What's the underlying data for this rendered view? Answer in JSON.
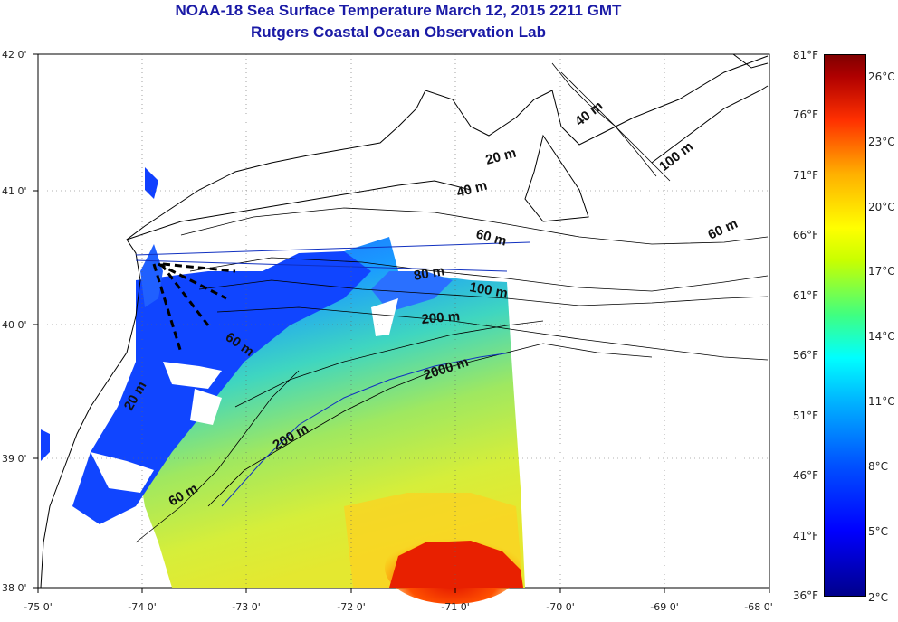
{
  "title": {
    "line1": "NOAA-18 Sea Surface Temperature March 12, 2015 2211 GMT",
    "line2": "Rutgers Coastal Ocean Observation Lab"
  },
  "axes": {
    "lon_labels": [
      "-75 0'",
      "-74 0'",
      "-73 0'",
      "-72 0'",
      "-71 0'",
      "-70 0'",
      "-69 0'",
      "-68 0'"
    ],
    "lat_labels": [
      "42 0'",
      "41 0'",
      "40 0'",
      "39 0'",
      "38 0'"
    ]
  },
  "contours": {
    "labels": [
      "40 m",
      "20 m",
      "40 m",
      "100 m",
      "60 m",
      "60 m",
      "80 m",
      "100 m",
      "200 m",
      "60 m",
      "2000 m",
      "20 m",
      "200 m",
      "60 m"
    ]
  },
  "colorbar": {
    "fahrenheit": [
      "81°F",
      "76°F",
      "71°F",
      "66°F",
      "61°F",
      "56°F",
      "51°F",
      "46°F",
      "41°F",
      "36°F"
    ],
    "celsius": [
      "26°C",
      "23°C",
      "20°C",
      "17°C",
      "14°C",
      "11°C",
      "8°C",
      "5°C",
      "2°C"
    ]
  },
  "colors": {
    "title": "#1a1aa6",
    "land": "#ffffff",
    "contour": "#000000",
    "warm_core": "#e82000",
    "cold_shelf": "#1040ff"
  }
}
